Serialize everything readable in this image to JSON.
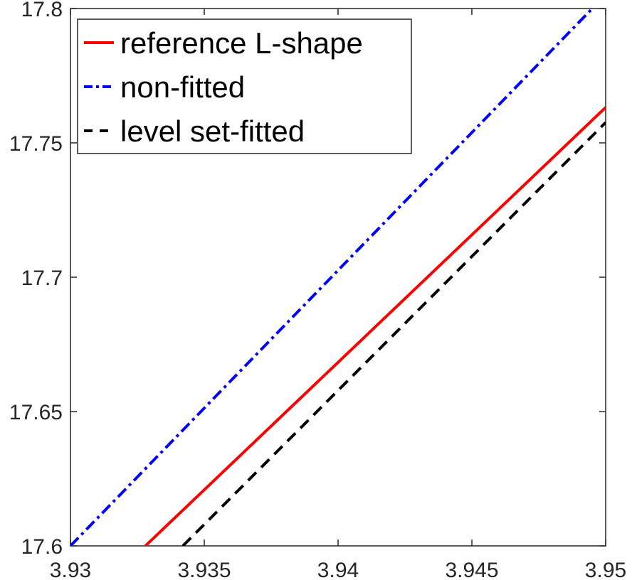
{
  "chart_data": {
    "type": "line",
    "title": "",
    "xlabel": "",
    "ylabel": "",
    "xlim": [
      3.93,
      3.95
    ],
    "ylim": [
      17.6,
      17.8
    ],
    "x_ticks": [
      3.93,
      3.935,
      3.94,
      3.945,
      3.95
    ],
    "y_ticks": [
      17.6,
      17.65,
      17.7,
      17.75,
      17.8
    ],
    "x_tick_labels": [
      "3.93",
      "3.935",
      "3.94",
      "3.945",
      "3.95"
    ],
    "y_tick_labels": [
      "17.6",
      "17.65",
      "17.7",
      "17.75",
      "17.8"
    ],
    "grid": false,
    "legend_position": "top-left",
    "series": [
      {
        "name": "reference L-shape",
        "color": "#ff0000",
        "style": "solid",
        "points": [
          [
            3.9328,
            17.6
          ],
          [
            3.95,
            17.7632
          ]
        ]
      },
      {
        "name": "non-fitted",
        "color": "#0000ff",
        "style": "dashdot",
        "points": [
          [
            3.93,
            17.6
          ],
          [
            3.9495,
            17.8
          ]
        ]
      },
      {
        "name": "level set-fitted",
        "color": "#000000",
        "style": "dashed",
        "points": [
          [
            3.9342,
            17.6
          ],
          [
            3.95,
            17.7576
          ]
        ]
      }
    ]
  }
}
